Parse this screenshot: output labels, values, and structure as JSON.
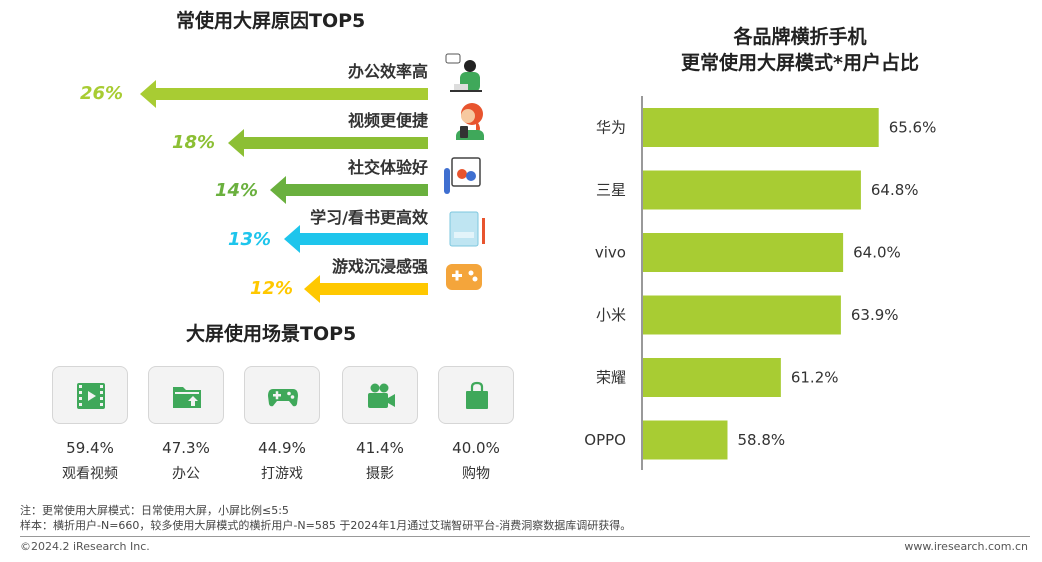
{
  "left_top": {
    "title": "常使用大屏原因TOP5",
    "reasons": [
      {
        "label": "办公效率高",
        "value": "26%",
        "color": "#a8cc33"
      },
      {
        "label": "视频更便捷",
        "value": "18%",
        "color": "#8cbf34"
      },
      {
        "label": "社交体验好",
        "value": "14%",
        "color": "#6ab03e"
      },
      {
        "label": "学习/看书更高效",
        "value": "13%",
        "color": "#1ec5ec"
      },
      {
        "label": "游戏沉浸感强",
        "value": "12%",
        "color": "#ffc800"
      }
    ]
  },
  "left_bottom": {
    "title": "大屏使用场景TOP5",
    "scenes": [
      {
        "value": "59.4%",
        "name": "观看视频",
        "icon": "video-icon"
      },
      {
        "value": "47.3%",
        "name": "办公",
        "icon": "folder-icon"
      },
      {
        "value": "44.9%",
        "name": "打游戏",
        "icon": "gamepad-icon"
      },
      {
        "value": "41.4%",
        "name": "摄影",
        "icon": "camera-icon"
      },
      {
        "value": "40.0%",
        "name": "购物",
        "icon": "shopping-bag-icon"
      }
    ]
  },
  "chart_data": {
    "type": "bar",
    "orientation": "horizontal",
    "title_line1": "各品牌横折手机",
    "title_line2": "更常使用大屏模式*用户占比",
    "categories": [
      "华为",
      "三星",
      "vivo",
      "小米",
      "荣耀",
      "OPPO"
    ],
    "values": [
      65.6,
      64.8,
      64.0,
      63.9,
      61.2,
      58.8
    ],
    "value_labels": [
      "65.6%",
      "64.8%",
      "64.0%",
      "63.9%",
      "61.2%",
      "58.8%"
    ],
    "xlim": [
      55,
      72
    ],
    "bar_color": "#a8cc33",
    "grid": false
  },
  "notes": {
    "note1": "注：更常使用大屏模式：日常使用大屏，小屏比例≤5:5",
    "note2": "样本：横折用户-N=660，较多使用大屏模式的横折用户-N=585 于2024年1月通过艾瑞智研平台-消费洞察数据库调研获得。"
  },
  "footer": {
    "copyright": "©2024.2 iResearch Inc.",
    "website": "www.iresearch.com.cn"
  },
  "colors": {
    "green": "#a8cc33",
    "icon_green": "#3fa85a",
    "card_bg": "#f3f3f3"
  }
}
